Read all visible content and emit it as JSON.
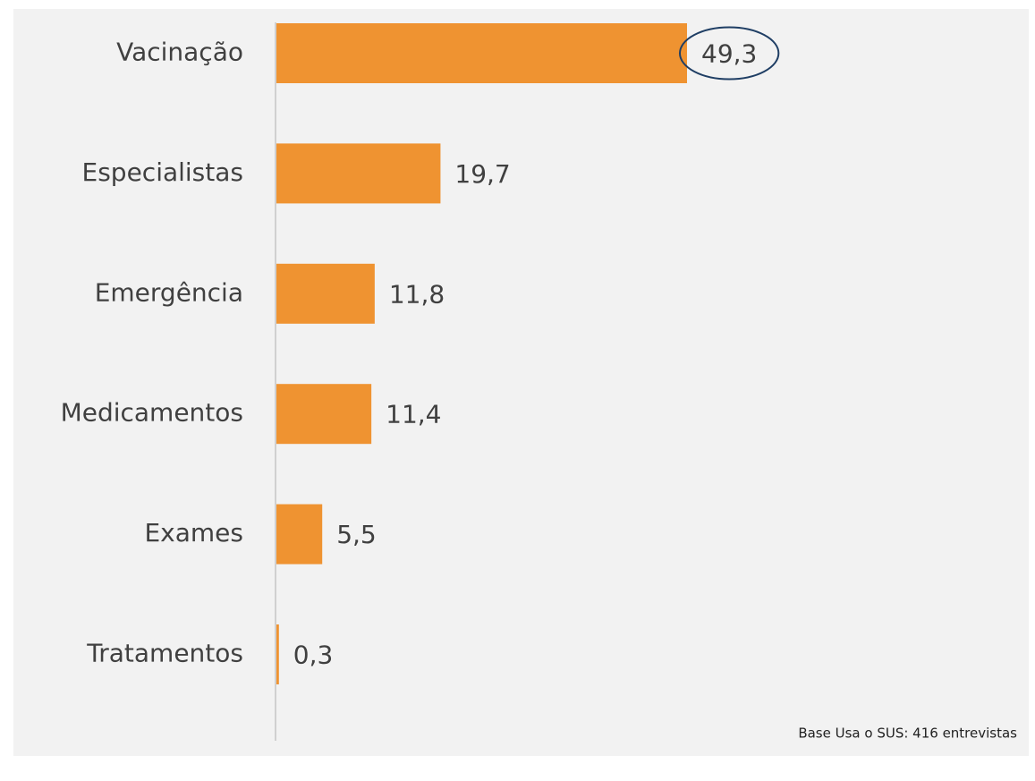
{
  "chart_data": {
    "type": "bar",
    "orientation": "horizontal",
    "categories": [
      "Vacinação",
      "Especialistas",
      "Emergência",
      "Medicamentos",
      "Exames",
      "Tratamentos"
    ],
    "values": [
      49.3,
      19.7,
      11.8,
      11.4,
      5.5,
      0.3
    ],
    "value_labels": [
      "49,3",
      "19,7",
      "11,8",
      "11,4",
      "5,5",
      "0,3"
    ],
    "color": "#ef9331",
    "footnote": "Base Usa o SUS: 416 entrevistas"
  }
}
